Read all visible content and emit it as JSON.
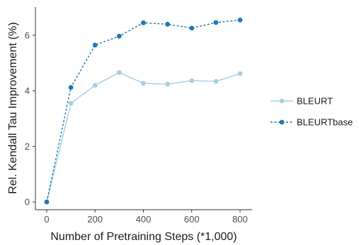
{
  "chart_data": {
    "type": "line",
    "xlabel": "Number of Pretraining Steps (*1,000)",
    "ylabel": "Rel. Kendall Tau Improvement (%)",
    "xlim": [
      0,
      800
    ],
    "ylim": [
      0,
      6.5
    ],
    "xticks": [
      0,
      200,
      400,
      600,
      800
    ],
    "yticks": [
      0,
      2,
      4,
      6
    ],
    "x": [
      0,
      100,
      200,
      300,
      400,
      500,
      600,
      700,
      800
    ],
    "series": [
      {
        "name": "BLEURT",
        "values": [
          0,
          3.55,
          4.2,
          4.66,
          4.27,
          4.24,
          4.37,
          4.34,
          4.62
        ],
        "color": "#a6cee3",
        "line_style": "solid"
      },
      {
        "name": "BLEURTbase",
        "values": [
          0,
          4.12,
          5.65,
          5.97,
          6.45,
          6.4,
          6.26,
          6.46,
          6.55
        ],
        "color": "#1f78b4",
        "line_style": "dashed"
      }
    ],
    "grid": false,
    "legend_position": "right"
  }
}
